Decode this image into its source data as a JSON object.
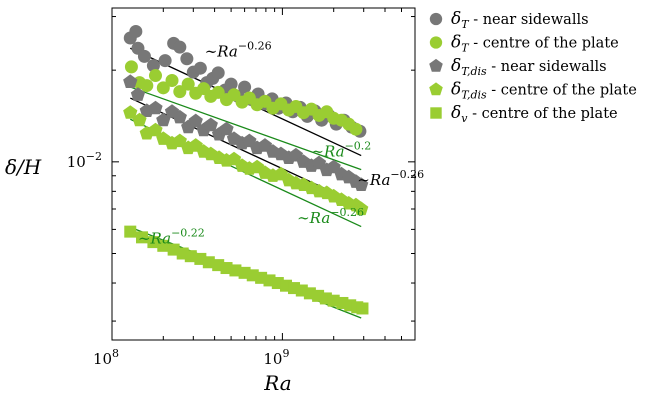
{
  "chart_data": {
    "type": "scatter",
    "title": "",
    "xlabel": "Ra",
    "ylabel": "δ/H",
    "x_scale": "log",
    "y_scale": "log",
    "xlim": [
      100000000,
      6000000000
    ],
    "ylim": [
      0.0026,
      0.032
    ],
    "x_ticks": [
      {
        "value": 100000000,
        "label": "10",
        "exp": "8"
      },
      {
        "value": 1000000000,
        "label": "10",
        "exp": "9"
      }
    ],
    "y_ticks": [
      {
        "value": 0.01,
        "label": "10",
        "exp": "−2"
      }
    ],
    "legend_position": "outside-right",
    "grid": false,
    "series": [
      {
        "key": "dT_side",
        "name": "δ_T - near sidewalls",
        "legend_sym": "δ",
        "legend_sub": "T",
        "legend_desc": " - near sidewalls",
        "marker": "circle",
        "color": "#777777",
        "points": [
          [
            128000000.0,
            0.0255
          ],
          [
            138000000.0,
            0.0268
          ],
          [
            142000000.0,
            0.0236
          ],
          [
            155000000.0,
            0.0222
          ],
          [
            175000000.0,
            0.0207
          ],
          [
            205000000.0,
            0.0215
          ],
          [
            230000000.0,
            0.0245
          ],
          [
            250000000.0,
            0.0238
          ],
          [
            275000000.0,
            0.0218
          ],
          [
            300000000.0,
            0.0197
          ],
          [
            330000000.0,
            0.0203
          ],
          [
            360000000.0,
            0.0182
          ],
          [
            390000000.0,
            0.0188
          ],
          [
            420000000.0,
            0.0196
          ],
          [
            460000000.0,
            0.0172
          ],
          [
            500000000.0,
            0.018
          ],
          [
            550000000.0,
            0.0164
          ],
          [
            600000000.0,
            0.0176
          ],
          [
            660000000.0,
            0.016
          ],
          [
            720000000.0,
            0.0167
          ],
          [
            790000000.0,
            0.0155
          ],
          [
            870000000.0,
            0.0161
          ],
          [
            950000000.0,
            0.015
          ],
          [
            1050000000.0,
            0.0156
          ],
          [
            1150000000.0,
            0.0146
          ],
          [
            1270000000.0,
            0.0151
          ],
          [
            1400000000.0,
            0.0141
          ],
          [
            1550000000.0,
            0.0147
          ],
          [
            1700000000.0,
            0.0137
          ],
          [
            1880000000.0,
            0.0142
          ],
          [
            2070000000.0,
            0.0133
          ],
          [
            2300000000.0,
            0.0137
          ],
          [
            2550000000.0,
            0.013
          ],
          [
            2850000000.0,
            0.0126
          ]
        ]
      },
      {
        "key": "dT_centre",
        "name": "δ_T - centre of the plate",
        "legend_sym": "δ",
        "legend_sub": "T",
        "legend_desc": " - centre of the plate",
        "marker": "circle",
        "color": "#9acd32",
        "points": [
          [
            130000000.0,
            0.0205
          ],
          [
            145000000.0,
            0.0182
          ],
          [
            160000000.0,
            0.0178
          ],
          [
            180000000.0,
            0.0192
          ],
          [
            200000000.0,
            0.0175
          ],
          [
            225000000.0,
            0.0185
          ],
          [
            250000000.0,
            0.017
          ],
          [
            280000000.0,
            0.018
          ],
          [
            310000000.0,
            0.0168
          ],
          [
            345000000.0,
            0.0174
          ],
          [
            380000000.0,
            0.0164
          ],
          [
            420000000.0,
            0.0169
          ],
          [
            470000000.0,
            0.016
          ],
          [
            520000000.0,
            0.0166
          ],
          [
            580000000.0,
            0.0157
          ],
          [
            640000000.0,
            0.0162
          ],
          [
            710000000.0,
            0.0154
          ],
          [
            790000000.0,
            0.0158
          ],
          [
            880000000.0,
            0.015
          ],
          [
            980000000.0,
            0.0155
          ],
          [
            1090000000.0,
            0.0148
          ],
          [
            1200000000.0,
            0.0152
          ],
          [
            1330000000.0,
            0.0145
          ],
          [
            1480000000.0,
            0.0149
          ],
          [
            1640000000.0,
            0.0142
          ],
          [
            1820000000.0,
            0.0146
          ],
          [
            2000000000.0,
            0.0139
          ],
          [
            2220000000.0,
            0.0137
          ],
          [
            2450000000.0,
            0.0133
          ],
          [
            2700000000.0,
            0.0128
          ]
        ]
      },
      {
        "key": "dTdis_side",
        "name": "δ_T,dis - near sidewalls",
        "legend_sym": "δ",
        "legend_sub": "T,dis",
        "legend_desc": " - near sidewalls",
        "marker": "pentagon",
        "color": "#777777",
        "points": [
          [
            128000000.0,
            0.0183
          ],
          [
            142000000.0,
            0.0166
          ],
          [
            160000000.0,
            0.0147
          ],
          [
            180000000.0,
            0.015
          ],
          [
            200000000.0,
            0.0137
          ],
          [
            225000000.0,
            0.0146
          ],
          [
            250000000.0,
            0.014
          ],
          [
            280000000.0,
            0.013
          ],
          [
            310000000.0,
            0.0136
          ],
          [
            345000000.0,
            0.0127
          ],
          [
            380000000.0,
            0.0132
          ],
          [
            425000000.0,
            0.0123
          ],
          [
            470000000.0,
            0.0128
          ],
          [
            520000000.0,
            0.0119
          ],
          [
            580000000.0,
            0.0115
          ],
          [
            640000000.0,
            0.0117
          ],
          [
            710000000.0,
            0.0111
          ],
          [
            790000000.0,
            0.0113
          ],
          [
            880000000.0,
            0.0108
          ],
          [
            980000000.0,
            0.0106
          ],
          [
            1090000000.0,
            0.0103
          ],
          [
            1200000000.0,
            0.0105
          ],
          [
            1330000000.0,
            0.01
          ],
          [
            1480000000.0,
            0.0097
          ],
          [
            1640000000.0,
            0.0099
          ],
          [
            1820000000.0,
            0.0094
          ],
          [
            2000000000.0,
            0.0096
          ],
          [
            2220000000.0,
            0.0091
          ],
          [
            2450000000.0,
            0.0089
          ],
          [
            2700000000.0,
            0.0086
          ],
          [
            2900000000.0,
            0.0084
          ]
        ]
      },
      {
        "key": "dTdis_centre",
        "name": "δ_T,dis - centre of the plate",
        "legend_sym": "δ",
        "legend_sub": "T,dis",
        "legend_desc": " - centre of the plate",
        "marker": "pentagon",
        "color": "#9acd32",
        "points": [
          [
            128000000.0,
            0.0145
          ],
          [
            145000000.0,
            0.0137
          ],
          [
            160000000.0,
            0.0124
          ],
          [
            180000000.0,
            0.0127
          ],
          [
            200000000.0,
            0.0119
          ],
          [
            225000000.0,
            0.0115
          ],
          [
            250000000.0,
            0.0117
          ],
          [
            280000000.0,
            0.0111
          ],
          [
            310000000.0,
            0.0113
          ],
          [
            345000000.0,
            0.0108
          ],
          [
            380000000.0,
            0.0106
          ],
          [
            425000000.0,
            0.0103
          ],
          [
            470000000.0,
            0.0101
          ],
          [
            520000000.0,
            0.0102
          ],
          [
            580000000.0,
            0.0097
          ],
          [
            640000000.0,
            0.0095
          ],
          [
            710000000.0,
            0.0096
          ],
          [
            790000000.0,
            0.0092
          ],
          [
            880000000.0,
            0.009
          ],
          [
            980000000.0,
            0.0091
          ],
          [
            1090000000.0,
            0.0087
          ],
          [
            1200000000.0,
            0.0085
          ],
          [
            1330000000.0,
            0.0084
          ],
          [
            1480000000.0,
            0.0082
          ],
          [
            1640000000.0,
            0.008
          ],
          [
            1820000000.0,
            0.0079
          ],
          [
            2000000000.0,
            0.0077
          ],
          [
            2220000000.0,
            0.0075
          ],
          [
            2450000000.0,
            0.0073
          ],
          [
            2700000000.0,
            0.0072
          ],
          [
            2900000000.0,
            0.007
          ]
        ]
      },
      {
        "key": "dv_centre",
        "name": "δ_v - centre of the plate",
        "legend_sym": "δ",
        "legend_sub": "v",
        "legend_desc": " - centre of the plate",
        "marker": "square",
        "color": "#9acd32",
        "points": [
          [
            128000000.0,
            0.0059
          ],
          [
            150000000.0,
            0.00565
          ],
          [
            175000000.0,
            0.00545
          ],
          [
            200000000.0,
            0.0053
          ],
          [
            230000000.0,
            0.00515
          ],
          [
            260000000.0,
            0.005
          ],
          [
            290000000.0,
            0.0049
          ],
          [
            330000000.0,
            0.0048
          ],
          [
            370000000.0,
            0.00468
          ],
          [
            420000000.0,
            0.00458
          ],
          [
            470000000.0,
            0.00448
          ],
          [
            530000000.0,
            0.0044
          ],
          [
            600000000.0,
            0.00432
          ],
          [
            670000000.0,
            0.00424
          ],
          [
            750000000.0,
            0.00416
          ],
          [
            840000000.0,
            0.00408
          ],
          [
            940000000.0,
            0.004
          ],
          [
            1050000000.0,
            0.00392
          ],
          [
            1170000000.0,
            0.00385
          ],
          [
            1300000000.0,
            0.00378
          ],
          [
            1450000000.0,
            0.0037
          ],
          [
            1620000000.0,
            0.00363
          ],
          [
            1800000000.0,
            0.00356
          ],
          [
            2000000000.0,
            0.0035
          ],
          [
            2250000000.0,
            0.00344
          ],
          [
            2500000000.0,
            0.00338
          ],
          [
            2750000000.0,
            0.00333
          ],
          [
            2950000000.0,
            0.0033
          ]
        ]
      }
    ],
    "fit_lines": [
      {
        "key": "fit_dT_side",
        "exponent": -0.26,
        "x_range": [
          128000000.0,
          2900000000.0
        ],
        "y_start": 0.0236,
        "color": "#000000"
      },
      {
        "key": "fit_dT_centre",
        "exponent": -0.2,
        "x_range": [
          128000000.0,
          2900000000.0
        ],
        "y_start": 0.0176,
        "color": "#1a8a1a"
      },
      {
        "key": "fit_dTdis_side",
        "exponent": -0.26,
        "x_range": [
          128000000.0,
          2900000000.0
        ],
        "y_start": 0.0162,
        "color": "#000000"
      },
      {
        "key": "fit_dTdis_centre",
        "exponent": -0.26,
        "x_range": [
          128000000.0,
          2900000000.0
        ],
        "y_start": 0.0138,
        "color": "#1a8a1a"
      },
      {
        "key": "fit_dv_centre",
        "exponent": -0.22,
        "x_range": [
          128000000.0,
          2900000000.0
        ],
        "y_start": 0.0061,
        "color": "#1a8a1a"
      }
    ],
    "annotations": [
      {
        "key": "ann1",
        "text": "∼Ra",
        "exp": "−0.26",
        "color": "#000000",
        "x": 350000000.0,
        "y": 0.0222
      },
      {
        "key": "ann2",
        "text": "∼Ra",
        "exp": "−0.2",
        "color": "#1a8a1a",
        "x": 1480000000.0,
        "y": 0.0104
      },
      {
        "key": "ann3",
        "text": "∼Ra",
        "exp": "−0.26",
        "color": "#000000",
        "x": 2750000000.0,
        "y": 0.0084
      },
      {
        "key": "ann4",
        "text": "∼Ra",
        "exp": "−0.26",
        "color": "#1a8a1a",
        "x": 1220000000.0,
        "y": 0.0063
      },
      {
        "key": "ann5",
        "text": "∼Ra",
        "exp": "−0.22",
        "color": "#1a8a1a",
        "x": 142000000.0,
        "y": 0.0054
      }
    ]
  }
}
